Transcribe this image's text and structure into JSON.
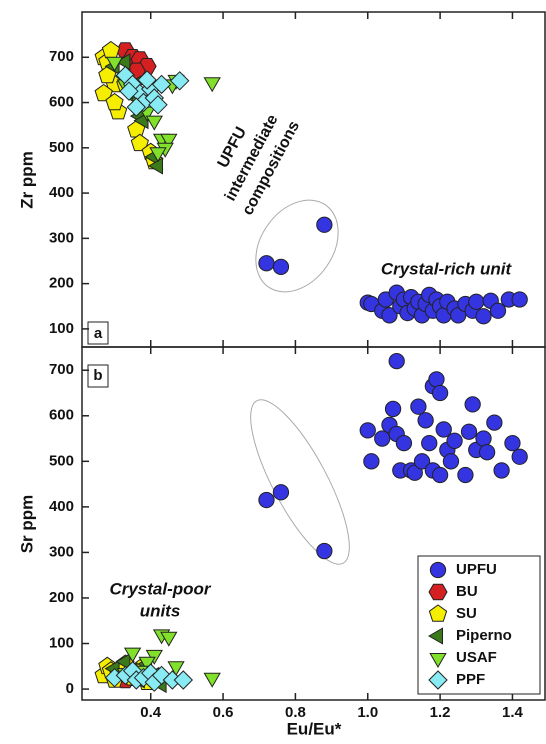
{
  "chart_data": [
    {
      "type": "scatter",
      "panel_label": "a",
      "ylabel": "Zr ppm",
      "annotation_lines": [
        "UPFU",
        "intermediate",
        "compositions"
      ],
      "annotation": "Crystal-rich unit",
      "xlim": [
        0.21,
        1.49
      ],
      "xticks": [
        0.4,
        0.6,
        0.8,
        {
          "value": 1,
          "label": "1.0"
        },
        1.2,
        1.4
      ],
      "ylim": [
        60,
        800
      ],
      "yticks": [
        100,
        200,
        300,
        400,
        500,
        600,
        700
      ],
      "series": [
        {
          "name": "UPFU",
          "color": "#3434e0",
          "marker": "circle",
          "x": [
            0.72,
            0.76,
            0.88,
            1.0,
            1.01,
            1.04,
            1.05,
            1.06,
            1.08,
            1.09,
            1.1,
            1.11,
            1.12,
            1.13,
            1.14,
            1.15,
            1.16,
            1.17,
            1.18,
            1.19,
            1.2,
            1.21,
            1.22,
            1.24,
            1.25,
            1.27,
            1.29,
            1.3,
            1.32,
            1.34,
            1.36,
            1.39,
            1.42
          ],
          "values": [
            245,
            237,
            330,
            158,
            155,
            140,
            165,
            130,
            180,
            150,
            165,
            135,
            170,
            145,
            160,
            130,
            155,
            175,
            140,
            165,
            150,
            130,
            160,
            145,
            130,
            155,
            140,
            160,
            128,
            162,
            140,
            165,
            165
          ]
        },
        {
          "name": "BU",
          "color": "#d42020",
          "marker": "hexagon",
          "x": [
            0.33,
            0.35,
            0.37,
            0.39,
            0.36
          ],
          "values": [
            715,
            700,
            695,
            680,
            670
          ]
        },
        {
          "name": "SU",
          "color": "#f5ee00",
          "marker": "pentagon",
          "x": [
            0.27,
            0.28,
            0.29,
            0.3,
            0.27,
            0.31,
            0.3,
            0.36,
            0.37,
            0.4,
            0.41,
            0.33,
            0.28
          ],
          "values": [
            700,
            690,
            715,
            640,
            620,
            580,
            600,
            540,
            510,
            490,
            470,
            640,
            660
          ]
        },
        {
          "name": "Piperno",
          "color": "#3a7a1a",
          "marker": "triangle-left",
          "x": [
            0.3,
            0.33,
            0.35,
            0.37,
            0.38,
            0.36,
            0.41,
            0.42,
            0.38
          ],
          "values": [
            680,
            690,
            630,
            570,
            560,
            610,
            480,
            460,
            650
          ]
        },
        {
          "name": "USAF",
          "color": "#80e02a",
          "marker": "triangle-down",
          "x": [
            0.3,
            0.33,
            0.37,
            0.39,
            0.41,
            0.43,
            0.45,
            0.44,
            0.42,
            0.47,
            0.57,
            0.46
          ],
          "values": [
            690,
            640,
            600,
            580,
            560,
            520,
            520,
            500,
            490,
            650,
            645,
            640
          ]
        },
        {
          "name": "PPF",
          "color": "#88eaf2",
          "marker": "diamond",
          "x": [
            0.33,
            0.35,
            0.37,
            0.38,
            0.36,
            0.4,
            0.41,
            0.43,
            0.39,
            0.48,
            0.34,
            0.42
          ],
          "values": [
            660,
            640,
            620,
            600,
            590,
            630,
            610,
            640,
            650,
            648,
            625,
            595
          ]
        }
      ]
    },
    {
      "type": "scatter",
      "panel_label": "b",
      "ylabel": "Sr ppm",
      "xlabel": "Eu/Eu*",
      "annotation_lines": [
        "Crystal-poor",
        "units"
      ],
      "legend": "lower right",
      "xlim": [
        0.21,
        1.49
      ],
      "xticks": [
        0.4,
        0.6,
        0.8,
        {
          "value": 1,
          "label": "1.0"
        },
        1.2,
        1.4
      ],
      "ylim": [
        -24,
        751
      ],
      "yticks": [
        0,
        100,
        200,
        300,
        400,
        500,
        600,
        700
      ],
      "series": [
        {
          "name": "UPFU",
          "color": "#3434e0",
          "marker": "circle",
          "x": [
            0.72,
            0.76,
            0.88,
            1.0,
            1.01,
            1.04,
            1.06,
            1.07,
            1.08,
            1.08,
            1.09,
            1.1,
            1.12,
            1.13,
            1.14,
            1.15,
            1.16,
            1.17,
            1.18,
            1.18,
            1.19,
            1.2,
            1.2,
            1.21,
            1.22,
            1.23,
            1.24,
            1.27,
            1.28,
            1.29,
            1.3,
            1.32,
            1.33,
            1.35,
            1.37,
            1.4,
            1.42
          ],
          "values": [
            415,
            432,
            303,
            568,
            500,
            550,
            580,
            615,
            720,
            560,
            480,
            540,
            480,
            475,
            620,
            500,
            590,
            540,
            665,
            480,
            680,
            650,
            470,
            570,
            525,
            500,
            545,
            470,
            565,
            625,
            525,
            550,
            520,
            585,
            480,
            540,
            510
          ]
        },
        {
          "name": "BU",
          "color": "#d42020",
          "marker": "hexagon",
          "x": [
            0.33,
            0.36
          ],
          "values": [
            20,
            25
          ]
        },
        {
          "name": "SU",
          "color": "#f5ee00",
          "marker": "pentagon",
          "x": [
            0.27,
            0.28,
            0.29,
            0.3,
            0.31,
            0.33,
            0.35,
            0.37,
            0.39
          ],
          "values": [
            30,
            50,
            40,
            20,
            35,
            55,
            25,
            45,
            15
          ]
        },
        {
          "name": "Piperno",
          "color": "#3a7a1a",
          "marker": "triangle-left",
          "x": [
            0.3,
            0.33,
            0.35,
            0.37,
            0.39,
            0.41,
            0.43
          ],
          "values": [
            45,
            60,
            40,
            20,
            55,
            30,
            10
          ]
        },
        {
          "name": "USAF",
          "color": "#80e02a",
          "marker": "triangle-down",
          "x": [
            0.43,
            0.45,
            0.41,
            0.39,
            0.35,
            0.37,
            0.47,
            0.57,
            0.33
          ],
          "values": [
            120,
            115,
            75,
            60,
            80,
            40,
            50,
            25,
            35
          ]
        },
        {
          "name": "PPF",
          "color": "#88eaf2",
          "marker": "diamond",
          "x": [
            0.3,
            0.33,
            0.35,
            0.36,
            0.38,
            0.4,
            0.41,
            0.43,
            0.46,
            0.49
          ],
          "values": [
            25,
            30,
            40,
            20,
            25,
            35,
            15,
            30,
            20,
            20
          ]
        }
      ]
    }
  ]
}
